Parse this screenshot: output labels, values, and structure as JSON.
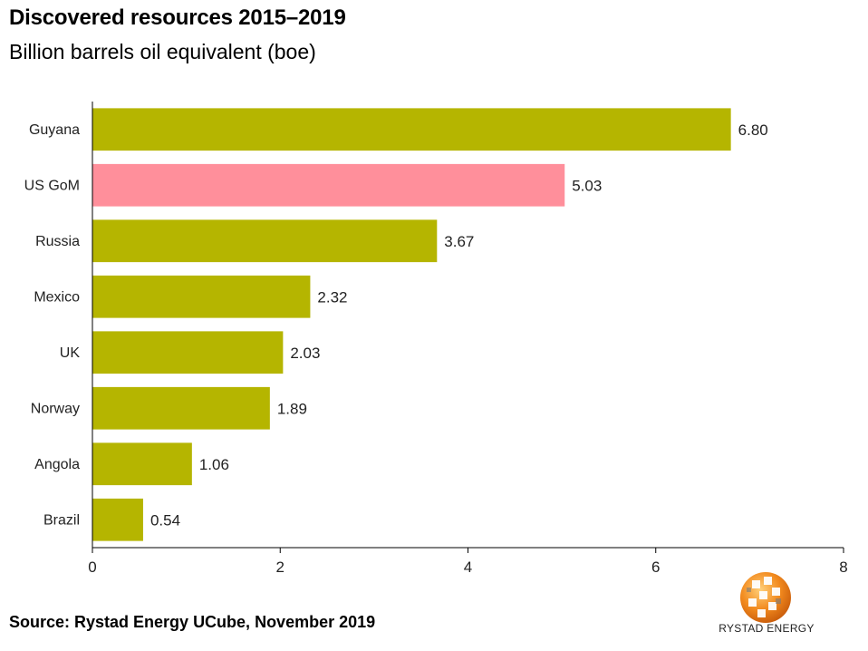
{
  "title": "Discovered resources 2015–2019",
  "subtitle": "Billion barrels oil equivalent (boe)",
  "source": "Source: Rystad Energy UCube, November 2019",
  "brand": "RYSTAD ENERGY",
  "colors": {
    "default_bar": "#b5b500",
    "highlight_bar": "#ff8f9b",
    "axis": "#000000"
  },
  "chart_data": {
    "type": "bar",
    "orientation": "horizontal",
    "categories": [
      "Guyana",
      "US GoM",
      "Russia",
      "Mexico",
      "UK",
      "Norway",
      "Angola",
      "Brazil"
    ],
    "values": [
      6.8,
      5.03,
      3.67,
      2.32,
      2.03,
      1.89,
      1.06,
      0.54
    ],
    "value_labels": [
      "6.80",
      "5.03",
      "3.67",
      "2.32",
      "2.03",
      "1.89",
      "1.06",
      "0.54"
    ],
    "highlight": "US GoM",
    "xlim": [
      0,
      8
    ],
    "xticks": [
      0,
      2,
      4,
      6,
      8
    ],
    "grid": false,
    "title": "Discovered resources 2015–2019",
    "subtitle": "Billion barrels oil equivalent (boe)"
  }
}
